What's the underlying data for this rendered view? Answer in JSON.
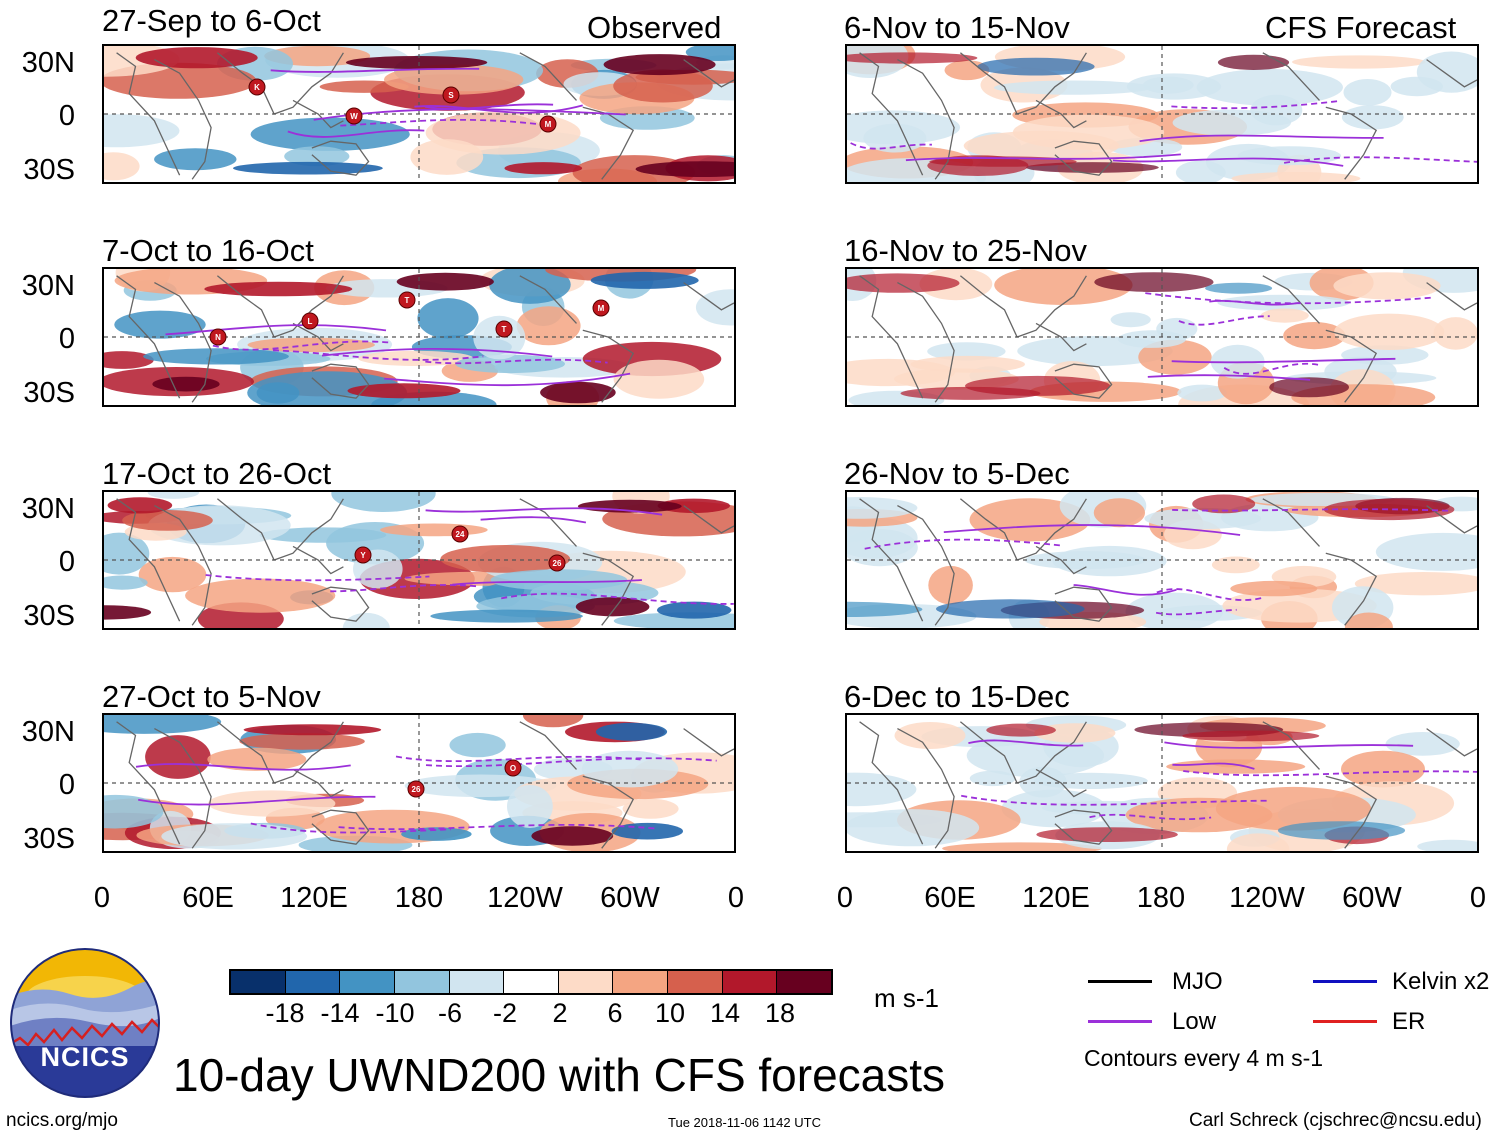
{
  "panel_titles": {
    "observed_1": "27-Sep to 6-Oct",
    "observed_2": "7-Oct to 16-Oct",
    "observed_3": "17-Oct to 26-Oct",
    "observed_4": "27-Oct to 5-Nov",
    "forecast_1": "6-Nov to 15-Nov",
    "forecast_2": "16-Nov to 25-Nov",
    "forecast_3": "26-Nov to 5-Dec",
    "forecast_4": "6-Dec to 15-Dec"
  },
  "column_labels": {
    "observed": "Observed",
    "forecast": "CFS Forecast"
  },
  "lat_labels": {
    "north": "30N",
    "equator": "0",
    "south": "30S"
  },
  "lon_labels": {
    "l0": "0",
    "l1": "60E",
    "l2": "120E",
    "l3": "180",
    "l4": "120W",
    "l5": "60W",
    "l6": "0"
  },
  "colorbar": {
    "ticks": {
      "t1": "-18",
      "t2": "-14",
      "t3": "-10",
      "t4": "-6",
      "t5": "-2",
      "t6": "2",
      "t7": "6",
      "t8": "10",
      "t9": "14",
      "t10": "18"
    },
    "units": "m s-1",
    "colors": [
      "#08306b",
      "#2166ac",
      "#4393c3",
      "#92c5de",
      "#d1e5f0",
      "#ffffff",
      "#fddbc7",
      "#f4a582",
      "#d6604d",
      "#b2182b",
      "#67001f"
    ]
  },
  "legend": {
    "mjo": "MJO",
    "kelvin": "Kelvin x2",
    "low": "Low",
    "er": "ER",
    "contours_note": "Contours every 4 m s-1",
    "colors": {
      "mjo": "#000000",
      "kelvin": "#1010c0",
      "low": "#9b30d9",
      "er": "#e02020"
    }
  },
  "main_title": "10-day UWND200 with CFS forecasts",
  "logo": {
    "text": "NCICS"
  },
  "footer": {
    "url": "ncics.org/mjo",
    "timestamp": "Tue 2018-11-06 1142 UTC",
    "credit": "Carl Schreck (cjschrec@ncsu.edu)"
  },
  "storms": {
    "p1": [
      "K",
      "W",
      "S",
      "M"
    ],
    "p2": [
      "L",
      "T",
      "T",
      "M",
      "N"
    ],
    "p3": [
      "Y",
      "24",
      "26"
    ],
    "p4": [
      "26",
      "O"
    ]
  }
}
